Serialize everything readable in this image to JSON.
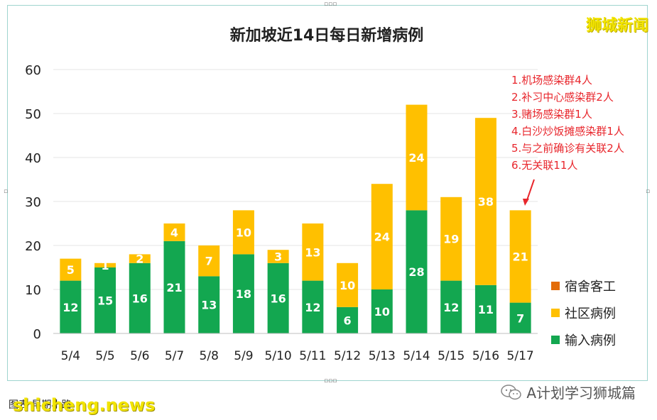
{
  "chart_data": {
    "type": "bar",
    "stacked": true,
    "title": "新加坡近14日每日新增病例",
    "categories": [
      "5/4",
      "5/5",
      "5/6",
      "5/7",
      "5/8",
      "5/9",
      "5/10",
      "5/11",
      "5/12",
      "5/13",
      "5/14",
      "5/15",
      "5/16",
      "5/17"
    ],
    "series": [
      {
        "name": "输入病例",
        "color": "#13a750",
        "values": [
          12,
          15,
          16,
          21,
          13,
          18,
          16,
          12,
          6,
          10,
          28,
          12,
          11,
          7
        ]
      },
      {
        "name": "社区病例",
        "color": "#ffc000",
        "values": [
          5,
          1,
          2,
          4,
          7,
          10,
          3,
          13,
          10,
          24,
          24,
          19,
          38,
          21
        ]
      },
      {
        "name": "宿舍客工",
        "color": "#e36c09",
        "values": [
          0,
          0,
          0,
          0,
          0,
          0,
          0,
          0,
          0,
          0,
          0,
          0,
          0,
          0
        ]
      }
    ],
    "ylim": [
      0,
      60
    ],
    "yticks": [
      0,
      10,
      20,
      30,
      40,
      50,
      60
    ],
    "legend_position": "right",
    "grid": true,
    "annotation": [
      "1.机场感染群4人",
      "2.补习中心感染群2人",
      "3.赌场感染群1人",
      "4.白沙炒饭摊感染群1人",
      "5.与之前确诊有关联2人",
      "6.无关联11人"
    ]
  },
  "watermark_top": "狮城新闻",
  "caption": "图表    早期小路",
  "site_watermark": "shicheng.news",
  "account_label": "A计划学习狮城篇",
  "colors": {
    "annotation": "#e8262c",
    "arrow": "#e8262c"
  }
}
